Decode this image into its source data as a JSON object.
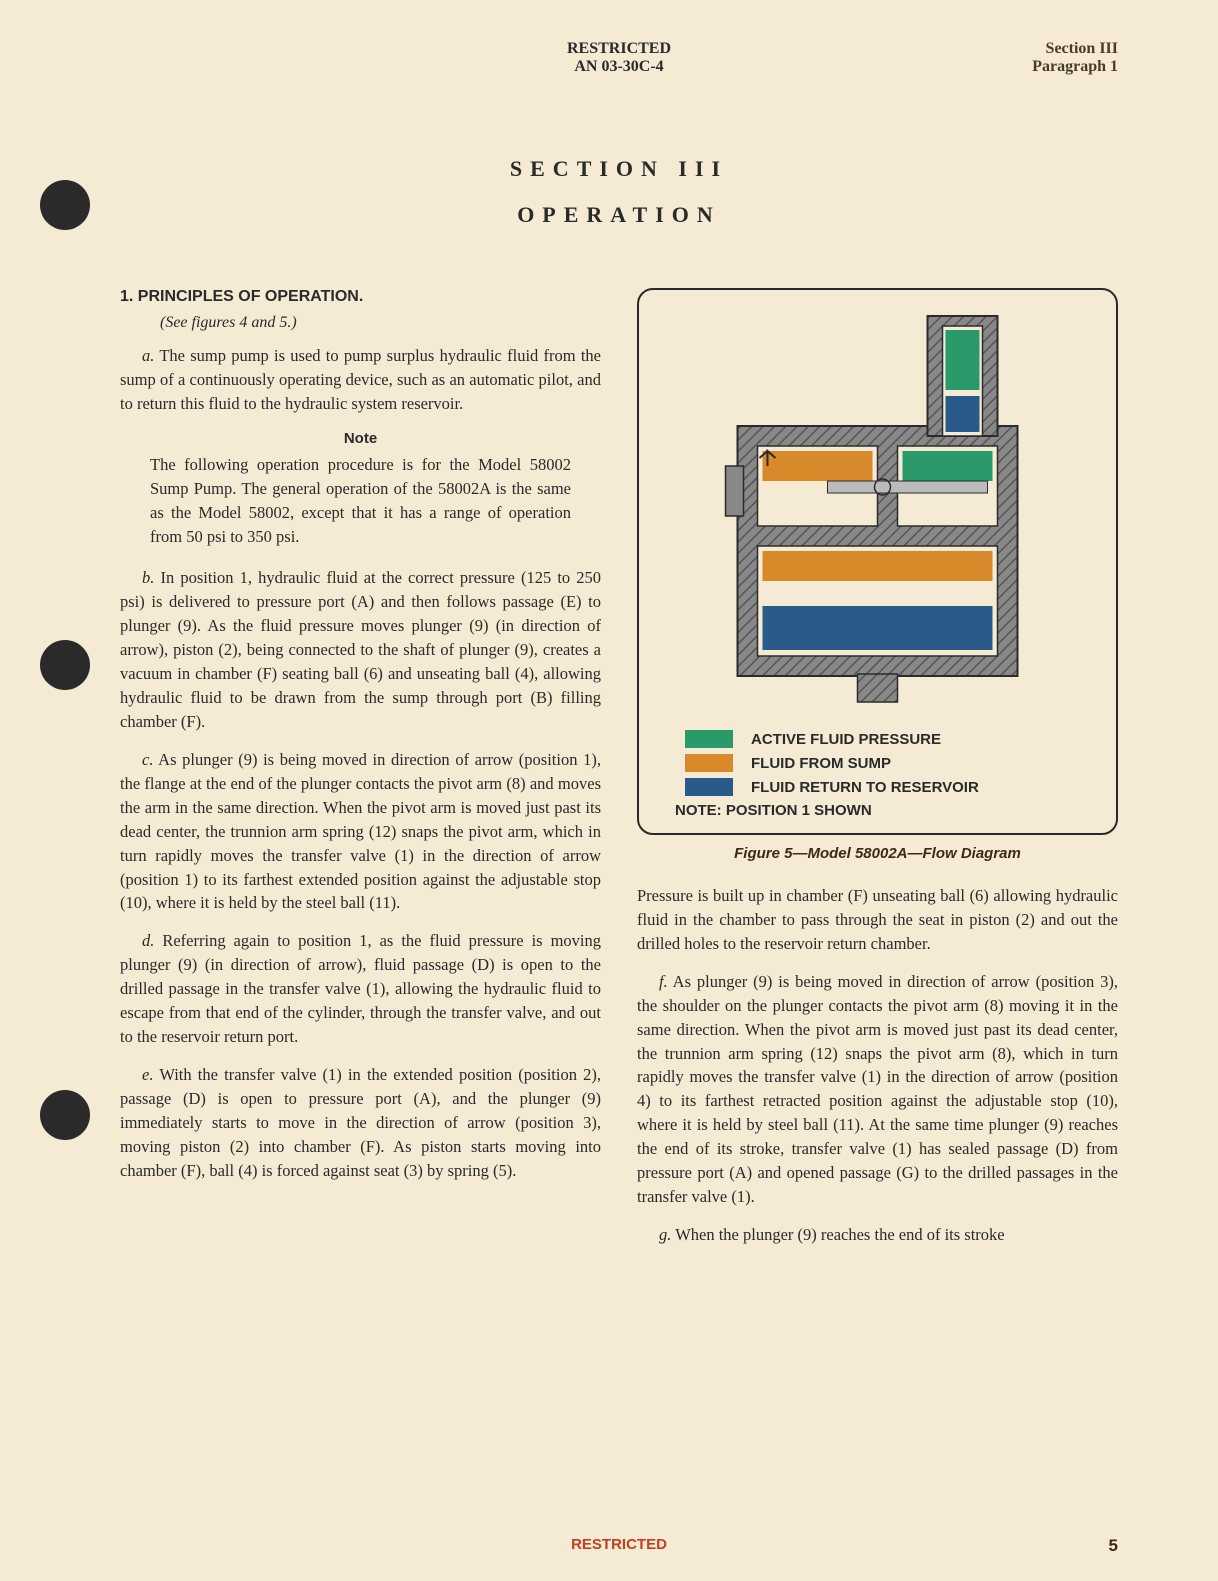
{
  "header": {
    "restricted": "RESTRICTED",
    "doc": "AN 03-30C-4",
    "section": "Section III",
    "paragraph": "Paragraph 1"
  },
  "title": {
    "section": "SECTION III",
    "subtitle": "OPERATION"
  },
  "heading": "1. PRINCIPLES OF OPERATION.",
  "see_figures": "(See figures 4 and 5.)",
  "para_a_lead": "a.",
  "para_a": " The sump pump is used to pump surplus hydraulic fluid from the sump of a continuously operating device, such as an automatic pilot, and to return this fluid to the hydraulic system reservoir.",
  "note_heading": "Note",
  "note_body": "The following operation procedure is for the Model 58002 Sump Pump. The general operation of the 58002A is the same as the Model 58002, except that it has a range of operation from 50 psi to 350 psi.",
  "para_b_lead": "b.",
  "para_b": " In position 1, hydraulic fluid at the correct pressure (125 to 250 psi) is delivered to pressure port (A) and then follows passage (E) to plunger (9). As the fluid pressure moves plunger (9) (in direction of arrow), piston (2), being connected to the shaft of plunger (9), creates a vacuum in chamber (F) seating ball (6) and unseating ball (4), allowing hydraulic fluid to be drawn from the sump through port (B) filling chamber (F).",
  "para_c_lead": "c.",
  "para_c": " As plunger (9) is being moved in direction of arrow (position 1), the flange at the end of the plunger contacts the pivot arm (8) and moves the arm in the same direction. When the pivot arm is moved just past its dead center, the trunnion arm spring (12) snaps the pivot arm, which in turn rapidly moves the transfer valve (1) in the direction of arrow (position 1) to its farthest extended position against the adjustable stop (10), where it is held by the steel ball (11).",
  "para_d_lead": "d.",
  "para_d": " Referring again to position 1, as the fluid pressure is moving plunger (9) (in direction of arrow), fluid passage (D) is open to the drilled passage in the transfer valve (1), allowing the hydraulic fluid to escape from that end of the cylinder, through the transfer valve, and out to the reservoir return port.",
  "para_e_lead": "e.",
  "para_e": " With the transfer valve (1) in the extended position (position 2), passage (D) is open to pressure port (A), and the plunger (9) immediately starts to move in the direction of arrow (position 3), moving piston (2) into chamber (F). As piston starts moving into chamber (F), ball (4) is forced against seat (3) by spring (5).",
  "para_cont": "Pressure is built up in chamber (F) unseating ball (6) allowing hydraulic fluid in the chamber to pass through the seat in piston (2) and out the drilled holes to the reservoir return chamber.",
  "para_f_lead": "f.",
  "para_f": " As plunger (9) is being moved in direction of arrow (position 3), the shoulder on the plunger contacts the pivot arm (8) moving it in the same direction. When the pivot arm is moved just past its dead center, the trunnion arm spring (12) snaps the pivot arm (8), which in turn rapidly moves the transfer valve (1) in the direction of arrow (position 4) to its farthest retracted position against the adjustable stop (10), where it is held by steel ball (11). At the same time plunger (9) reaches the end of its stroke, transfer valve (1) has sealed passage (D) from pressure port (A) and opened passage (G) to the drilled passages in the transfer valve (1).",
  "para_g_lead": "g.",
  "para_g": " When the plunger (9) reaches the end of its stroke",
  "figure": {
    "caption": "Figure 5—Model 58002A—Flow Diagram",
    "legend": [
      {
        "color": "#2a9a6a",
        "label": "ACTIVE FLUID PRESSURE"
      },
      {
        "color": "#d88a2a",
        "label": "FLUID FROM SUMP"
      },
      {
        "color": "#2a5a8a",
        "label": "FLUID RETURN TO RESERVOIR"
      }
    ],
    "note": "NOTE: POSITION 1 SHOWN",
    "diagram": {
      "body_color": "#7a7a7a",
      "hatch_color": "#555555",
      "outline_color": "#2a2a2a",
      "bg_color": "#f5ead4"
    }
  },
  "footer": {
    "restricted": "RESTRICTED",
    "page": "5"
  },
  "colors": {
    "page_bg": "#f5ead4",
    "text": "#2a2a2a",
    "red": "#c04020"
  }
}
